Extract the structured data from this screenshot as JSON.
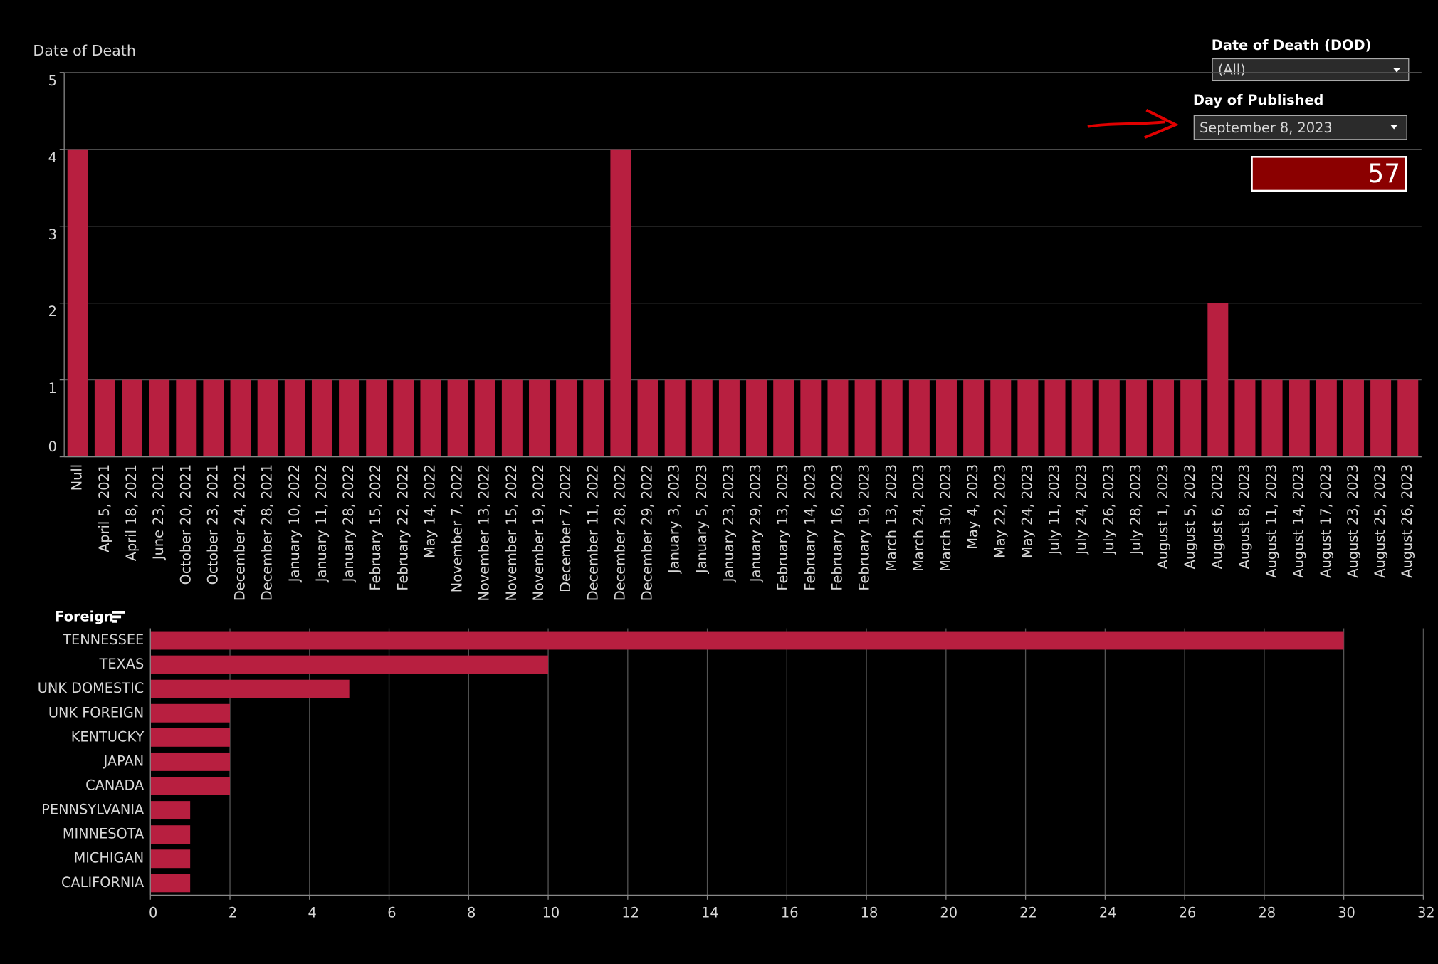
{
  "filters": {
    "dod": {
      "label": "Date of Death (DOD)",
      "value": "(All)"
    },
    "published": {
      "label": "Day of Published",
      "value": "September 8, 2023"
    },
    "total": 57
  },
  "chart_data": [
    {
      "type": "bar",
      "title": "Date of Death",
      "color": "#b81f40",
      "categories": [
        "Null",
        "April 5, 2021",
        "April 18, 2021",
        "June 23, 2021",
        "October 20, 2021",
        "October 23, 2021",
        "December 24, 2021",
        "December 28, 2021",
        "January 10, 2022",
        "January 11, 2022",
        "January 28, 2022",
        "February 15, 2022",
        "February 22, 2022",
        "May 14, 2022",
        "November 7, 2022",
        "November 13, 2022",
        "November 15, 2022",
        "November 19, 2022",
        "December 7, 2022",
        "December 11, 2022",
        "December 28, 2022",
        "December 29, 2022",
        "January 3, 2023",
        "January 5, 2023",
        "January 23, 2023",
        "January 29, 2023",
        "February 13, 2023",
        "February 14, 2023",
        "February 16, 2023",
        "February 19, 2023",
        "March 13, 2023",
        "March 24, 2023",
        "March 30, 2023",
        "May 4, 2023",
        "May 22, 2023",
        "May 24, 2023",
        "July 11, 2023",
        "July 24, 2023",
        "July 26, 2023",
        "July 28, 2023",
        "August 1, 2023",
        "August 5, 2023",
        "August 6, 2023",
        "August 8, 2023",
        "August 11, 2023",
        "August 14, 2023",
        "August 17, 2023",
        "August 23, 2023",
        "August 25, 2023",
        "August 26, 2023"
      ],
      "values": [
        4,
        1,
        1,
        1,
        1,
        1,
        1,
        1,
        1,
        1,
        1,
        1,
        1,
        1,
        1,
        1,
        1,
        1,
        1,
        1,
        4,
        1,
        1,
        1,
        1,
        1,
        1,
        1,
        1,
        1,
        1,
        1,
        1,
        1,
        1,
        1,
        1,
        1,
        1,
        1,
        1,
        1,
        2,
        1,
        1,
        1,
        1,
        1,
        1,
        1
      ],
      "ylim": [
        0,
        5
      ],
      "yticks": [
        0,
        1,
        2,
        3,
        4,
        5
      ],
      "grid": true
    },
    {
      "type": "bar",
      "orientation": "horizontal",
      "title": "Foreign",
      "color": "#b81f40",
      "categories": [
        "TENNESSEE",
        "TEXAS",
        "UNK DOMESTIC",
        "UNK FOREIGN",
        "KENTUCKY",
        "JAPAN",
        "CANADA",
        "PENNSYLVANIA",
        "MINNESOTA",
        "MICHIGAN",
        "CALIFORNIA"
      ],
      "values": [
        30,
        10,
        5,
        2,
        2,
        2,
        2,
        1,
        1,
        1,
        1
      ],
      "xlim": [
        0,
        32
      ],
      "xticks": [
        0,
        2,
        4,
        6,
        8,
        10,
        12,
        14,
        16,
        18,
        20,
        22,
        24,
        26,
        28,
        30,
        32
      ],
      "grid": true
    }
  ]
}
